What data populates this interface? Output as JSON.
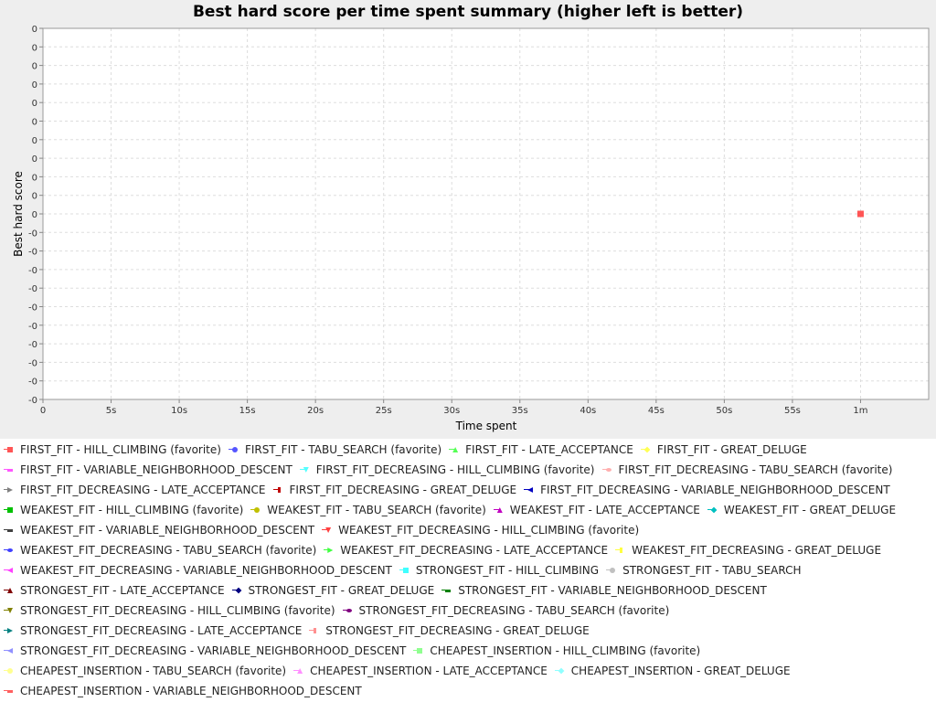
{
  "chart_data": {
    "type": "scatter",
    "title": "Best hard score per time spent summary (higher left is better)",
    "xlabel": "Time spent",
    "ylabel": "Best hard score",
    "x_ticks": [
      "0",
      "5s",
      "10s",
      "15s",
      "20s",
      "25s",
      "30s",
      "35s",
      "40s",
      "45s",
      "50s",
      "55s",
      "1m"
    ],
    "y_ticks": [
      "0",
      "0",
      "0",
      "0",
      "0",
      "0",
      "0",
      "0",
      "0",
      "0",
      "0",
      "-0",
      "-0",
      "-0",
      "-0",
      "-0",
      "-0",
      "-0",
      "-0",
      "-0",
      "-0"
    ],
    "xlim": [
      0,
      65
    ],
    "grid": true,
    "legend_position": "bottom",
    "series": [
      {
        "name": "FIRST_FIT - HILL_CLIMBING (favorite)",
        "color": "#ff5555",
        "shape": "square",
        "points": [
          {
            "x": 60,
            "y": 0
          }
        ]
      }
    ]
  },
  "legend": {
    "rows": [
      [
        {
          "label": "FIRST_FIT - HILL_CLIMBING (favorite)",
          "color": "#ff5555",
          "shape": "square"
        },
        {
          "label": "FIRST_FIT - TABU_SEARCH (favorite)",
          "color": "#5555ff",
          "shape": "circle"
        },
        {
          "label": "FIRST_FIT - LATE_ACCEPTANCE",
          "color": "#55ff55",
          "shape": "triangle-up"
        },
        {
          "label": "FIRST_FIT - GREAT_DELUGE",
          "color": "#ffff55",
          "shape": "diamond"
        }
      ],
      [
        {
          "label": "FIRST_FIT - VARIABLE_NEIGHBORHOOD_DESCENT",
          "color": "#ff55ff",
          "shape": "rect-h"
        },
        {
          "label": "FIRST_FIT_DECREASING - HILL_CLIMBING (favorite)",
          "color": "#55ffff",
          "shape": "triangle-down"
        },
        {
          "label": "FIRST_FIT_DECREASING - TABU_SEARCH (favorite)",
          "color": "#ffafaf",
          "shape": "ellipse"
        }
      ],
      [
        {
          "label": "FIRST_FIT_DECREASING - LATE_ACCEPTANCE",
          "color": "#808080",
          "shape": "triangle-right"
        },
        {
          "label": "FIRST_FIT_DECREASING - GREAT_DELUGE",
          "color": "#c00000",
          "shape": "rect-v"
        },
        {
          "label": "FIRST_FIT_DECREASING - VARIABLE_NEIGHBORHOOD_DESCENT",
          "color": "#0000c0",
          "shape": "triangle-left"
        }
      ],
      [
        {
          "label": "WEAKEST_FIT - HILL_CLIMBING (favorite)",
          "color": "#00c000",
          "shape": "square"
        },
        {
          "label": "WEAKEST_FIT - TABU_SEARCH (favorite)",
          "color": "#c0c000",
          "shape": "circle"
        },
        {
          "label": "WEAKEST_FIT - LATE_ACCEPTANCE",
          "color": "#c000c0",
          "shape": "triangle-up"
        },
        {
          "label": "WEAKEST_FIT - GREAT_DELUGE",
          "color": "#00c0c0",
          "shape": "diamond"
        }
      ],
      [
        {
          "label": "WEAKEST_FIT - VARIABLE_NEIGHBORHOOD_DESCENT",
          "color": "#404040",
          "shape": "rect-h"
        },
        {
          "label": "WEAKEST_FIT_DECREASING - HILL_CLIMBING (favorite)",
          "color": "#ff4040",
          "shape": "triangle-down"
        }
      ],
      [
        {
          "label": "WEAKEST_FIT_DECREASING - TABU_SEARCH (favorite)",
          "color": "#4040ff",
          "shape": "ellipse"
        },
        {
          "label": "WEAKEST_FIT_DECREASING - LATE_ACCEPTANCE",
          "color": "#40ff40",
          "shape": "triangle-right"
        },
        {
          "label": "WEAKEST_FIT_DECREASING - GREAT_DELUGE",
          "color": "#ffff40",
          "shape": "rect-v"
        }
      ],
      [
        {
          "label": "WEAKEST_FIT_DECREASING - VARIABLE_NEIGHBORHOOD_DESCENT",
          "color": "#ff40ff",
          "shape": "triangle-left"
        },
        {
          "label": "STRONGEST_FIT - HILL_CLIMBING",
          "color": "#40ffff",
          "shape": "square"
        },
        {
          "label": "STRONGEST_FIT - TABU_SEARCH",
          "color": "#c0c0c0",
          "shape": "circle"
        }
      ],
      [
        {
          "label": "STRONGEST_FIT - LATE_ACCEPTANCE",
          "color": "#800000",
          "shape": "triangle-up"
        },
        {
          "label": "STRONGEST_FIT - GREAT_DELUGE",
          "color": "#000080",
          "shape": "diamond"
        },
        {
          "label": "STRONGEST_FIT - VARIABLE_NEIGHBORHOOD_DESCENT",
          "color": "#008000",
          "shape": "rect-h"
        }
      ],
      [
        {
          "label": "STRONGEST_FIT_DECREASING - HILL_CLIMBING (favorite)",
          "color": "#808000",
          "shape": "triangle-down"
        },
        {
          "label": "STRONGEST_FIT_DECREASING - TABU_SEARCH (favorite)",
          "color": "#800080",
          "shape": "ellipse"
        }
      ],
      [
        {
          "label": "STRONGEST_FIT_DECREASING - LATE_ACCEPTANCE",
          "color": "#008080",
          "shape": "triangle-right"
        },
        {
          "label": "STRONGEST_FIT_DECREASING - GREAT_DELUGE",
          "color": "#ff9090",
          "shape": "rect-v"
        }
      ],
      [
        {
          "label": "STRONGEST_FIT_DECREASING - VARIABLE_NEIGHBORHOOD_DESCENT",
          "color": "#9090ff",
          "shape": "triangle-left"
        },
        {
          "label": "CHEAPEST_INSERTION - HILL_CLIMBING (favorite)",
          "color": "#90ff90",
          "shape": "square"
        }
      ],
      [
        {
          "label": "CHEAPEST_INSERTION - TABU_SEARCH (favorite)",
          "color": "#ffff90",
          "shape": "circle"
        },
        {
          "label": "CHEAPEST_INSERTION - LATE_ACCEPTANCE",
          "color": "#ff90ff",
          "shape": "triangle-up"
        },
        {
          "label": "CHEAPEST_INSERTION - GREAT_DELUGE",
          "color": "#90ffff",
          "shape": "diamond"
        }
      ],
      [
        {
          "label": "CHEAPEST_INSERTION - VARIABLE_NEIGHBORHOOD_DESCENT",
          "color": "#ff6060",
          "shape": "rect-h"
        }
      ]
    ]
  }
}
